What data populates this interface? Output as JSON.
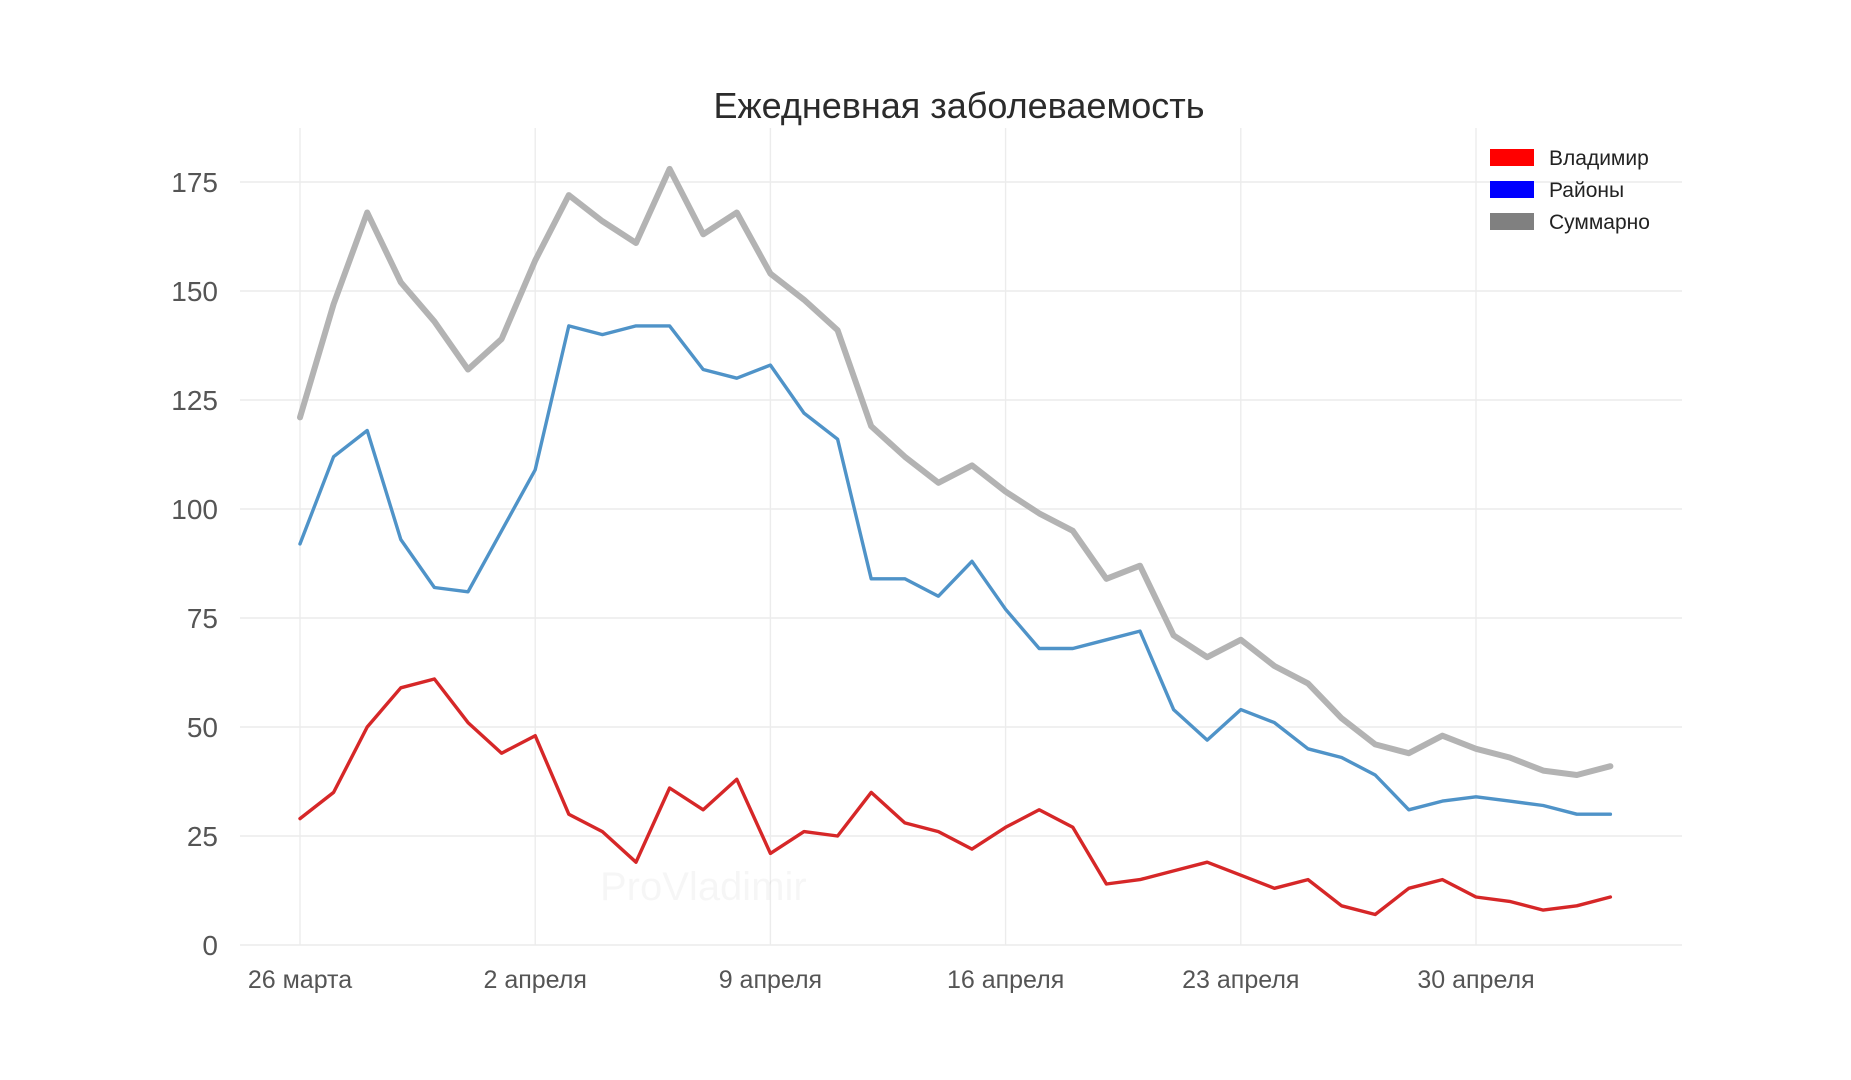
{
  "chart_data": {
    "type": "line",
    "title": "Ежедневная заболеваемость",
    "xlabel": "",
    "ylabel": "",
    "watermark": "ProVladimir",
    "ylim": [
      0,
      180
    ],
    "yticks": [
      0,
      25,
      50,
      75,
      100,
      125,
      150,
      175
    ],
    "x_start": "26 марта",
    "x_end": "5 мая",
    "xticks": [
      {
        "day_index": 0,
        "label": "26 марта"
      },
      {
        "day_index": 7,
        "label": "2 апреля"
      },
      {
        "day_index": 14,
        "label": "9 апреля"
      },
      {
        "day_index": 21,
        "label": "16 апреля"
      },
      {
        "day_index": 28,
        "label": "23 апреля"
      },
      {
        "day_index": 35,
        "label": "30 апреля"
      }
    ],
    "grid": true,
    "legend_position": "top-right",
    "series": [
      {
        "name": "Суммарно",
        "color": "#b3b3b3",
        "legend_color": "#808080",
        "values": [
          121,
          147,
          168,
          152,
          143,
          132,
          139,
          157,
          172,
          166,
          161,
          178,
          163,
          168,
          154,
          148,
          141,
          119,
          112,
          106,
          110,
          104,
          99,
          95,
          84,
          87,
          71,
          66,
          70,
          64,
          60,
          52,
          46,
          44,
          48,
          45,
          43,
          40,
          39,
          41
        ]
      },
      {
        "name": "Районы",
        "color": "#4f93c8",
        "legend_color": "#0000ff",
        "values": [
          92,
          112,
          118,
          93,
          82,
          81,
          95,
          109,
          142,
          140,
          142,
          142,
          132,
          130,
          133,
          122,
          116,
          84,
          84,
          80,
          88,
          77,
          68,
          68,
          70,
          72,
          54,
          47,
          54,
          51,
          45,
          43,
          39,
          31,
          33,
          34,
          33,
          32,
          30,
          30
        ]
      },
      {
        "name": "Владимир",
        "color": "#d62728",
        "legend_color": "#ff0000",
        "values": [
          29,
          35,
          50,
          59,
          61,
          51,
          44,
          48,
          30,
          26,
          19,
          36,
          31,
          38,
          21,
          26,
          25,
          35,
          28,
          26,
          22,
          27,
          31,
          27,
          14,
          15,
          17,
          19,
          16,
          13,
          15,
          9,
          7,
          13,
          15,
          11,
          10,
          8,
          9,
          11
        ]
      }
    ],
    "legend_order": [
      "Владимир",
      "Районы",
      "Суммарно"
    ]
  }
}
